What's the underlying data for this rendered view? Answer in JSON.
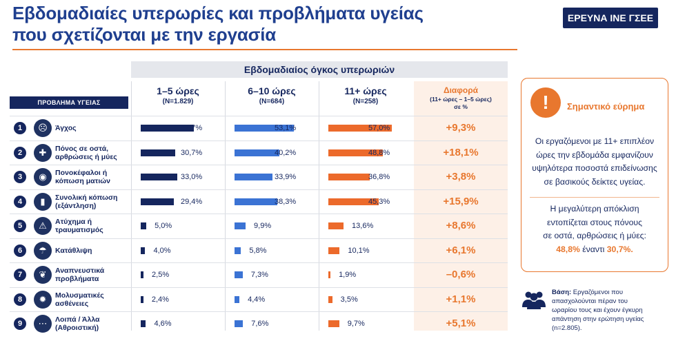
{
  "title_line1": "Εβδομαδιαίες υπερωρίες και προβλήματα υγείας",
  "title_line2": "που σχετίζονται με την εργασία",
  "badge": "ΕΡΕΥΝΑ ΙΝΕ ΓΣΕΕ",
  "subheader": "Εβδομαδιαίος όγκος υπερωριών",
  "problem_header": "ΠΡΟΒΛΗΜΑ ΥΓΕΙΑΣ",
  "columns": [
    {
      "label": "1–5 ώρες",
      "n": "(N=1.829)"
    },
    {
      "label": "6–10 ώρες",
      "n": "(N=684)"
    },
    {
      "label": "11+ ώρες",
      "n": "(N=258)"
    }
  ],
  "diff_header": {
    "label": "Διαφορά",
    "sub1": "(11+ ώρες – 1–5 ώρες)",
    "sub2": "σε %"
  },
  "colors": {
    "navy": "#15265e",
    "blue": "#3b73d4",
    "orange": "#ec6a2b",
    "accent": "#e8772e"
  },
  "rows": [
    {
      "num": "1",
      "icon": "anxiety-head-icon",
      "label_l1": "Άγχος",
      "label_l2": "",
      "v1": 47.7,
      "v2": 53.1,
      "v3": 57.0,
      "p1": "47,7%",
      "p2": "53,1%",
      "p3": "57,0%",
      "diff": "+9,3%"
    },
    {
      "num": "2",
      "icon": "joint-pain-icon",
      "label_l1": "Πόνος σε οστά,",
      "label_l2": "αρθρώσεις ή μύες",
      "v1": 30.7,
      "v2": 40.2,
      "v3": 48.8,
      "p1": "30,7%",
      "p2": "40,2%",
      "p3": "48,8%",
      "diff": "+18,1%"
    },
    {
      "num": "3",
      "icon": "eye-icon",
      "label_l1": "Πονοκέφαλοι ή",
      "label_l2": "κόπωση ματιών",
      "v1": 33.0,
      "v2": 33.9,
      "v3": 36.8,
      "p1": "33,0%",
      "p2": "33,9%",
      "p3": "36,8%",
      "diff": "+3,8%"
    },
    {
      "num": "4",
      "icon": "battery-icon",
      "label_l1": "Συνολική κόπωση",
      "label_l2": "(εξάντληση)",
      "v1": 29.4,
      "v2": 38.3,
      "v3": 45.3,
      "p1": "29,4%",
      "p2": "38,3%",
      "p3": "45,3%",
      "diff": "+15,9%"
    },
    {
      "num": "5",
      "icon": "fall-accident-icon",
      "label_l1": "Ατύχημα ή",
      "label_l2": "τραυματισμός",
      "v1": 5.0,
      "v2": 9.9,
      "v3": 13.6,
      "p1": "5,0%",
      "p2": "9,9%",
      "p3": "13,6%",
      "diff": "+8,6%"
    },
    {
      "num": "6",
      "icon": "rain-cloud-icon",
      "label_l1": "Κατάθλιψη",
      "label_l2": "",
      "v1": 4.0,
      "v2": 5.8,
      "v3": 10.1,
      "p1": "4,0%",
      "p2": "5,8%",
      "p3": "10,1%",
      "diff": "+6,1%"
    },
    {
      "num": "7",
      "icon": "lungs-icon",
      "label_l1": "Αναπνευστικά",
      "label_l2": "προβλήματα",
      "v1": 2.5,
      "v2": 7.3,
      "v3": 1.9,
      "p1": "2,5%",
      "p2": "7,3%",
      "p3": "1,9%",
      "diff": "–0,6%"
    },
    {
      "num": "8",
      "icon": "virus-icon",
      "label_l1": "Μολυσματικές",
      "label_l2": "ασθένειες",
      "v1": 2.4,
      "v2": 4.4,
      "v3": 3.5,
      "p1": "2,4%",
      "p2": "4,4%",
      "p3": "3,5%",
      "diff": "+1,1%"
    },
    {
      "num": "9",
      "icon": "more-dots-icon",
      "label_l1": "Λοιπά / Άλλα",
      "label_l2": "(Αθροιστική)",
      "v1": 4.6,
      "v2": 7.6,
      "v3": 9.7,
      "p1": "4,6%",
      "p2": "7,6%",
      "p3": "9,7%",
      "diff": "+5,1%"
    }
  ],
  "side": {
    "alert_title": "Σημαντικό εύρημα",
    "p1_l1": "Οι εργαζόμενοι με 11+ επιπλέον",
    "p1_l2": "ώρες την εβδομάδα εμφανίζουν",
    "p1_l3": "υψηλότερα ποσοστά επιδείνωσης",
    "p1_l4": "σε βασικούς δείκτες υγείας.",
    "p2_l1": "Η μεγαλύτερη απόκλιση",
    "p2_l2": "εντοπίζεται στους πόνους",
    "p2_l3": "σε οστά, αρθρώσεις ή μύες:",
    "p2_hl1": "48,8%",
    "p2_mid": " έναντι ",
    "p2_hl2": "30,7%."
  },
  "base": {
    "label": "Βάση:",
    "l1": " Εργαζόμενοι που",
    "l2": "απασχολούνται πέραν του",
    "l3": "ωραρίου τους και έχουν έγκυρη",
    "l4": "απάντηση στην ερώτηση υγείας",
    "l5": "(n=2.805)."
  }
}
